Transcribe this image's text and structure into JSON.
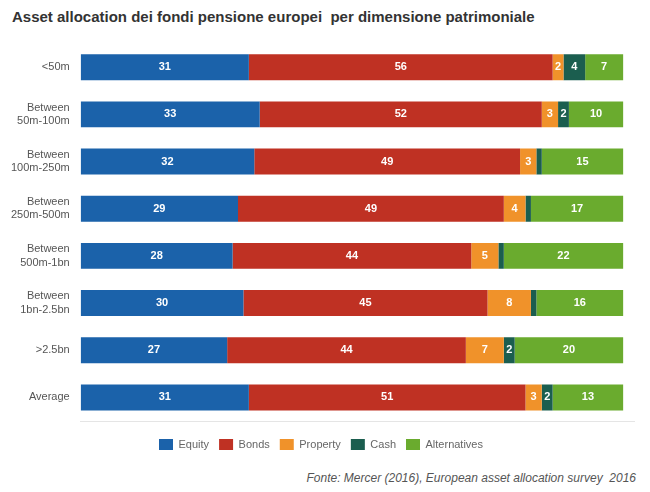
{
  "chart_data": {
    "type": "bar",
    "orientation": "horizontal",
    "stacked": true,
    "title": "Asset allocation dei fondi pensione europei  per dimensione patrimoniale",
    "annotations": [
      "Fonte: Mercer (2016), European asset allocation survey  2016"
    ],
    "categories": [
      "<50m",
      "Between\n50m-100m",
      "Between\n100m-250m",
      "Between\n250m-500m",
      "Between\n500m-1bn",
      "Between\n1bn-2.5bn",
      ">2.5bn",
      "Average"
    ],
    "series": [
      {
        "name": "Equity",
        "color": "#1b62aa",
        "values": [
          31,
          33,
          32,
          29,
          28,
          30,
          27,
          31
        ]
      },
      {
        "name": "Bonds",
        "color": "#bf3123",
        "values": [
          56,
          52,
          49,
          49,
          44,
          45,
          44,
          51
        ]
      },
      {
        "name": "Property",
        "color": "#f0922a",
        "values": [
          2,
          3,
          3,
          4,
          5,
          8,
          7,
          3
        ]
      },
      {
        "name": "Cash",
        "color": "#1b5e4f",
        "values": [
          4,
          2,
          1,
          1,
          1,
          1,
          2,
          2
        ],
        "value_labels": [
          "4",
          "2",
          null,
          null,
          null,
          null,
          "2",
          "2"
        ]
      },
      {
        "name": "Alternatives",
        "color": "#6aab2e",
        "values": [
          7,
          10,
          15,
          17,
          22,
          16,
          20,
          13
        ]
      }
    ],
    "xlim": [
      0,
      102
    ],
    "xticks": [],
    "tick_labels": "y",
    "grid": false,
    "legend": "bottom",
    "data_labels": true
  }
}
